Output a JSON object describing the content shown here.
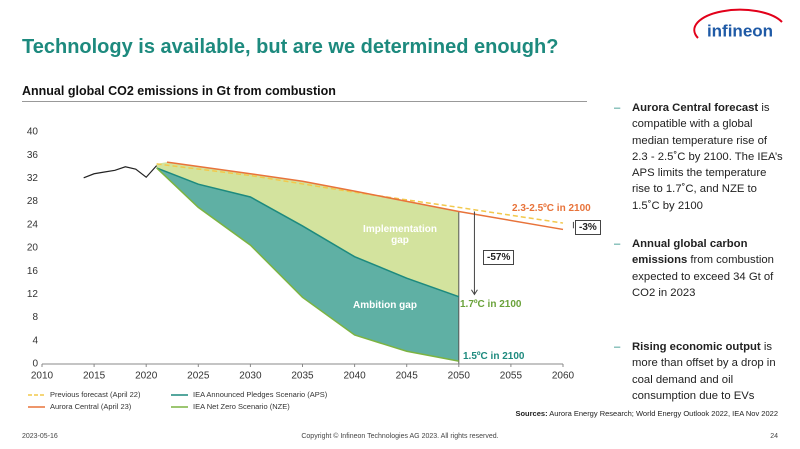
{
  "header": {
    "title": "Technology is available, but are we determined enough?",
    "logo": "infineon"
  },
  "chart_data": {
    "type": "line",
    "title": "Annual global CO2 emissions in Gt from combustion",
    "xlim": [
      2010,
      2060
    ],
    "xticks": [
      2010,
      2015,
      2020,
      2025,
      2030,
      2035,
      2040,
      2045,
      2050,
      2055,
      2060
    ],
    "ylim": [
      0,
      40
    ],
    "yticks": [
      0,
      4,
      8,
      12,
      16,
      20,
      24,
      28,
      32,
      36,
      40
    ],
    "grid": false,
    "series": [
      {
        "color": "#222222",
        "x": [
          2014,
          2015,
          2016,
          2017,
          2018,
          2019,
          2020,
          2021
        ],
        "values": [
          32.1,
          32.8,
          33.1,
          33.4,
          34.0,
          33.6,
          32.2,
          34.2
        ]
      },
      {
        "name": "Previous forecast (April 22)",
        "color": "#f2c94c",
        "dashed": true,
        "x": [
          2021,
          2030,
          2040,
          2050,
          2060
        ],
        "values": [
          34.5,
          32.5,
          29.6,
          27.0,
          24.3
        ]
      },
      {
        "name": "Aurora Central (April 23)",
        "color": "#e8733a",
        "x": [
          2022,
          2030,
          2035,
          2040,
          2050,
          2060
        ],
        "values": [
          34.8,
          32.8,
          31.5,
          29.8,
          26.3,
          23.2
        ]
      },
      {
        "name": "IEA Announced Pledges Scenario (APS)",
        "color": "#1d8a7e",
        "x": [
          2021,
          2025,
          2030,
          2035,
          2040,
          2045,
          2050
        ],
        "values": [
          33.8,
          31.0,
          28.8,
          23.8,
          18.5,
          14.8,
          11.6
        ]
      },
      {
        "name": "IEA Net Zero Scenario (NZE)",
        "color": "#7cb342",
        "x": [
          2021,
          2025,
          2030,
          2035,
          2040,
          2045,
          2050
        ],
        "values": [
          33.8,
          27.0,
          20.5,
          11.5,
          5.0,
          2.2,
          0.5
        ]
      }
    ],
    "annotations": {
      "implementation_gap": "Implementation gap",
      "ambition_gap": "Ambition gap",
      "aurora_temp": "2.3-2.5ºC in 2100",
      "aps_temp": "1.7ºC in 2100",
      "nze_temp": "1.5ºC in 2100",
      "aps_cut": "-57%",
      "aurora_cut": "-3%"
    }
  },
  "bullets": [
    {
      "bold": "Aurora Central forecast",
      "text": "is compatible with a global median temperature rise of 2.3 - 2.5˚C by 2100. The IEA’s APS limits the temperature rise to 1.7˚C, and NZE to 1.5˚C by 2100"
    },
    {
      "bold": "Annual global carbon emissions",
      "text": "from combustion expected to exceed 34 Gt of CO2 in 2023"
    },
    {
      "bold": "Rising economic output",
      "text": "is more than offset by a drop in coal demand and oil consumption due to EVs"
    }
  ],
  "sources": {
    "label": "Sources:",
    "text": "Aurora Energy Research; World Energy Outlook 2022, IEA Nov 2022"
  },
  "footer": {
    "date": "2023-05-16",
    "copyright": "Copyright © Infineon Technologies AG 2023. All rights reserved.",
    "page": "24"
  }
}
